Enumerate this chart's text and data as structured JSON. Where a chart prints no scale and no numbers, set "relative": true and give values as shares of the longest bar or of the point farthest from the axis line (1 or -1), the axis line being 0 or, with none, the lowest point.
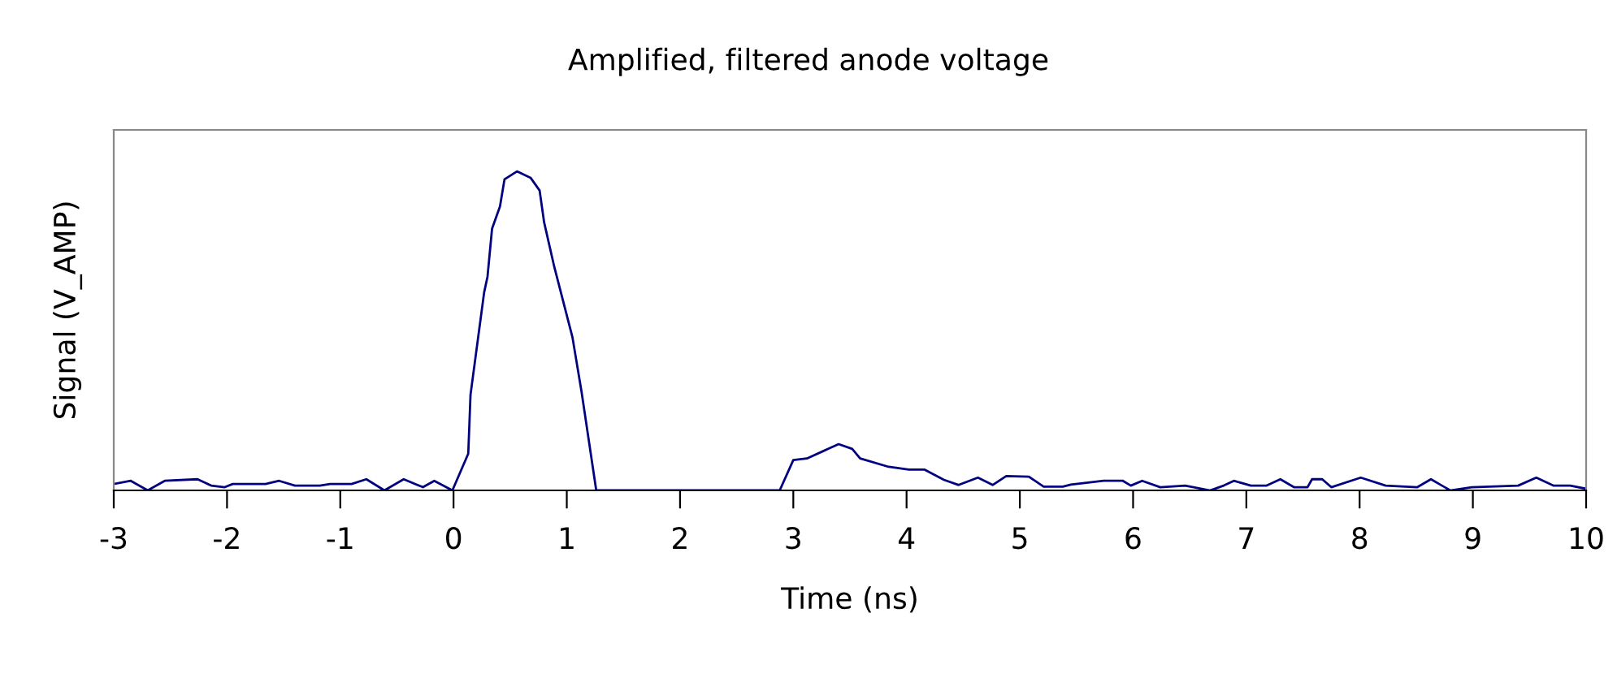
{
  "chart_data": {
    "type": "line",
    "title": "Amplified, filtered anode voltage",
    "xlabel": "Time (ns)",
    "ylabel": "Signal (V_AMP)",
    "relative": true,
    "xlim": [
      -3,
      10
    ],
    "xticks": [
      -3,
      -2,
      -1,
      0,
      1,
      2,
      3,
      4,
      5,
      6,
      7,
      8,
      9,
      10
    ],
    "grid": false,
    "legend": false,
    "marker": "none",
    "line_style": "solid",
    "series": [
      {
        "color": "#000080",
        "x": [
          -3,
          -2.85,
          -2.7,
          -2.55,
          -2.26,
          -2.14,
          -2.02,
          -1.95,
          -1.66,
          -1.54,
          -1.4,
          -1.18,
          -1.09,
          -0.9,
          -0.77,
          -0.61,
          -0.44,
          -0.27,
          -0.17,
          -0.01,
          0.13,
          0.15,
          0.27,
          0.3,
          0.34,
          0.41,
          0.45,
          0.56,
          0.68,
          0.76,
          0.8,
          0.89,
          1.05,
          1.13,
          1.26,
          2.88,
          3.0,
          3.12,
          3.4,
          3.52,
          3.59,
          3.83,
          4.02,
          4.16,
          4.33,
          4.46,
          4.63,
          4.76,
          4.88,
          5.08,
          5.21,
          5.38,
          5.45,
          5.74,
          5.91,
          5.98,
          6.08,
          6.24,
          6.46,
          6.68,
          6.8,
          6.89,
          7.04,
          7.18,
          7.3,
          7.42,
          7.54,
          7.58,
          7.67,
          7.75,
          8.01,
          8.23,
          8.51,
          8.63,
          8.8,
          8.99,
          9.4,
          9.56,
          9.71,
          9.86,
          10
        ],
        "values": [
          0.02,
          0.03,
          0,
          0.03,
          0.035,
          0.015,
          0.01,
          0.02,
          0.02,
          0.03,
          0.015,
          0.015,
          0.02,
          0.02,
          0.035,
          0,
          0.035,
          0.01,
          0.03,
          0,
          0.115,
          0.3,
          0.62,
          0.67,
          0.82,
          0.89,
          0.975,
          1,
          0.98,
          0.94,
          0.84,
          0.7,
          0.48,
          0.31,
          0,
          0,
          0.095,
          0.1,
          0.145,
          0.13,
          0.1,
          0.075,
          0.065,
          0.065,
          0.033,
          0.017,
          0.04,
          0.017,
          0.045,
          0.043,
          0.012,
          0.012,
          0.018,
          0.03,
          0.03,
          0.015,
          0.03,
          0.01,
          0.015,
          0,
          0.015,
          0.03,
          0.015,
          0.015,
          0.035,
          0.01,
          0.01,
          0.035,
          0.035,
          0.01,
          0.04,
          0.015,
          0.01,
          0.035,
          0,
          0.01,
          0.015,
          0.04,
          0.015,
          0.015,
          0.005
        ]
      }
    ]
  }
}
